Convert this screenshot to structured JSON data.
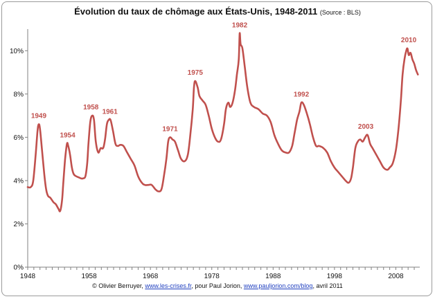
{
  "chart_data": {
    "type": "line",
    "title": "Évolution du taux de chômage aux États-Unis, 1948-2011",
    "title_source": "(Source : BLS)",
    "xlabel": "",
    "ylabel": "",
    "xlim": [
      1948,
      2011.9
    ],
    "ylim": [
      0,
      11
    ],
    "y_ticks": [
      "0%",
      "2%",
      "4%",
      "6%",
      "8%",
      "10%"
    ],
    "y_tick_values": [
      0,
      2,
      4,
      6,
      8,
      10
    ],
    "x_ticks": [
      "1948",
      "1958",
      "1968",
      "1978",
      "1988",
      "1998",
      "2008"
    ],
    "x_tick_values": [
      1948,
      1958,
      1968,
      1978,
      1988,
      1998,
      2008
    ],
    "grid": false,
    "legend": "none",
    "line_color": "#c0504d",
    "series": [
      {
        "x": [
          1948.0,
          1948.5,
          1948.9,
          1949.3,
          1949.6,
          1949.8,
          1950.0,
          1950.3,
          1950.7,
          1951.0,
          1951.3,
          1951.7,
          1952.2,
          1952.6,
          1953.0,
          1953.3,
          1953.6,
          1953.8,
          1954.1,
          1954.4,
          1954.6,
          1954.9,
          1955.2,
          1955.5,
          1955.9,
          1956.3,
          1956.7,
          1957.0,
          1957.4,
          1957.7,
          1957.9,
          1958.2,
          1958.5,
          1958.8,
          1959.1,
          1959.5,
          1959.9,
          1960.3,
          1960.6,
          1960.9,
          1961.2,
          1961.5,
          1961.9,
          1962.3,
          1962.7,
          1963.1,
          1963.6,
          1964.2,
          1964.8,
          1965.4,
          1966.0,
          1966.6,
          1967.1,
          1967.7,
          1968.2,
          1968.8,
          1969.3,
          1969.8,
          1970.2,
          1970.6,
          1970.9,
          1971.2,
          1971.6,
          1972.0,
          1972.5,
          1973.0,
          1973.6,
          1974.1,
          1974.5,
          1974.9,
          1975.1,
          1975.3,
          1975.7,
          1976.0,
          1976.5,
          1977.0,
          1977.5,
          1978.0,
          1978.5,
          1979.0,
          1979.5,
          1980.0,
          1980.3,
          1980.7,
          1981.0,
          1981.4,
          1981.8,
          1982.1,
          1982.4,
          1982.55,
          1982.7,
          1983.0,
          1983.4,
          1983.8,
          1984.3,
          1984.9,
          1985.6,
          1986.3,
          1987.0,
          1987.6,
          1988.2,
          1988.8,
          1989.4,
          1990.0,
          1990.6,
          1991.1,
          1991.5,
          1991.9,
          1992.3,
          1992.6,
          1993.0,
          1993.5,
          1994.0,
          1994.5,
          1995.0,
          1995.5,
          1996.2,
          1996.8,
          1997.4,
          1998.0,
          1998.6,
          1999.2,
          1999.8,
          2000.3,
          2000.7,
          2001.0,
          2001.4,
          2001.8,
          2002.2,
          2002.6,
          2003.0,
          2003.4,
          2003.8,
          2004.2,
          2004.8,
          2005.4,
          2006.0,
          2006.6,
          2007.0,
          2007.5,
          2008.0,
          2008.4,
          2008.8,
          2009.1,
          2009.4,
          2009.7,
          2009.9,
          2010.1,
          2010.4,
          2010.7,
          2011.0,
          2011.3,
          2011.6
        ],
        "values": [
          3.7,
          3.7,
          4.0,
          5.2,
          6.3,
          6.6,
          6.4,
          5.5,
          4.3,
          3.6,
          3.3,
          3.2,
          3.0,
          2.9,
          2.7,
          2.6,
          3.1,
          3.9,
          5.0,
          5.7,
          5.6,
          5.2,
          4.6,
          4.3,
          4.2,
          4.15,
          4.1,
          4.1,
          4.2,
          4.8,
          5.7,
          6.7,
          7.0,
          6.8,
          5.8,
          5.3,
          5.5,
          5.5,
          5.9,
          6.6,
          6.8,
          6.8,
          6.3,
          5.7,
          5.6,
          5.65,
          5.6,
          5.3,
          5.0,
          4.7,
          4.2,
          3.9,
          3.8,
          3.8,
          3.8,
          3.6,
          3.5,
          3.6,
          4.2,
          5.0,
          5.8,
          6.0,
          5.9,
          5.8,
          5.4,
          5.0,
          4.9,
          5.2,
          6.1,
          7.3,
          8.3,
          8.6,
          8.3,
          7.9,
          7.7,
          7.5,
          7.0,
          6.4,
          6.0,
          5.8,
          5.9,
          6.6,
          7.3,
          7.6,
          7.4,
          7.6,
          8.2,
          8.9,
          9.6,
          10.8,
          10.3,
          10.1,
          9.2,
          8.3,
          7.6,
          7.4,
          7.3,
          7.1,
          7.0,
          6.7,
          6.1,
          5.7,
          5.4,
          5.3,
          5.3,
          5.6,
          6.2,
          6.8,
          7.2,
          7.6,
          7.5,
          7.1,
          6.6,
          6.0,
          5.6,
          5.6,
          5.5,
          5.3,
          4.9,
          4.6,
          4.4,
          4.2,
          4.0,
          3.9,
          4.1,
          4.6,
          5.5,
          5.8,
          5.9,
          5.8,
          6.0,
          6.1,
          5.7,
          5.5,
          5.2,
          4.9,
          4.6,
          4.5,
          4.6,
          4.8,
          5.4,
          6.3,
          7.6,
          8.9,
          9.6,
          10.0,
          10.1,
          9.8,
          9.9,
          9.6,
          9.4,
          9.1,
          8.9
        ]
      }
    ],
    "annotations": [
      {
        "label": "1949",
        "x": 1949.8,
        "y": 6.6
      },
      {
        "label": "1954",
        "x": 1954.5,
        "y": 5.7
      },
      {
        "label": "1958",
        "x": 1958.3,
        "y": 7.0
      },
      {
        "label": "1961",
        "x": 1961.4,
        "y": 6.8
      },
      {
        "label": "1971",
        "x": 1971.2,
        "y": 6.0
      },
      {
        "label": "1975",
        "x": 1975.3,
        "y": 8.6
      },
      {
        "label": "1982",
        "x": 1982.55,
        "y": 10.8
      },
      {
        "label": "1992",
        "x": 1992.6,
        "y": 7.6
      },
      {
        "label": "2003",
        "x": 2003.1,
        "y": 6.1
      },
      {
        "label": "2010",
        "x": 2010.1,
        "y": 10.1
      }
    ]
  },
  "credit": {
    "prefix": "© Olivier Berruyer, ",
    "link1": "www.les-crises.fr",
    "mid": ", pour Paul Jorion, ",
    "link2": "www.pauljorion.com/blog",
    "suffix": ", avril 2011"
  }
}
